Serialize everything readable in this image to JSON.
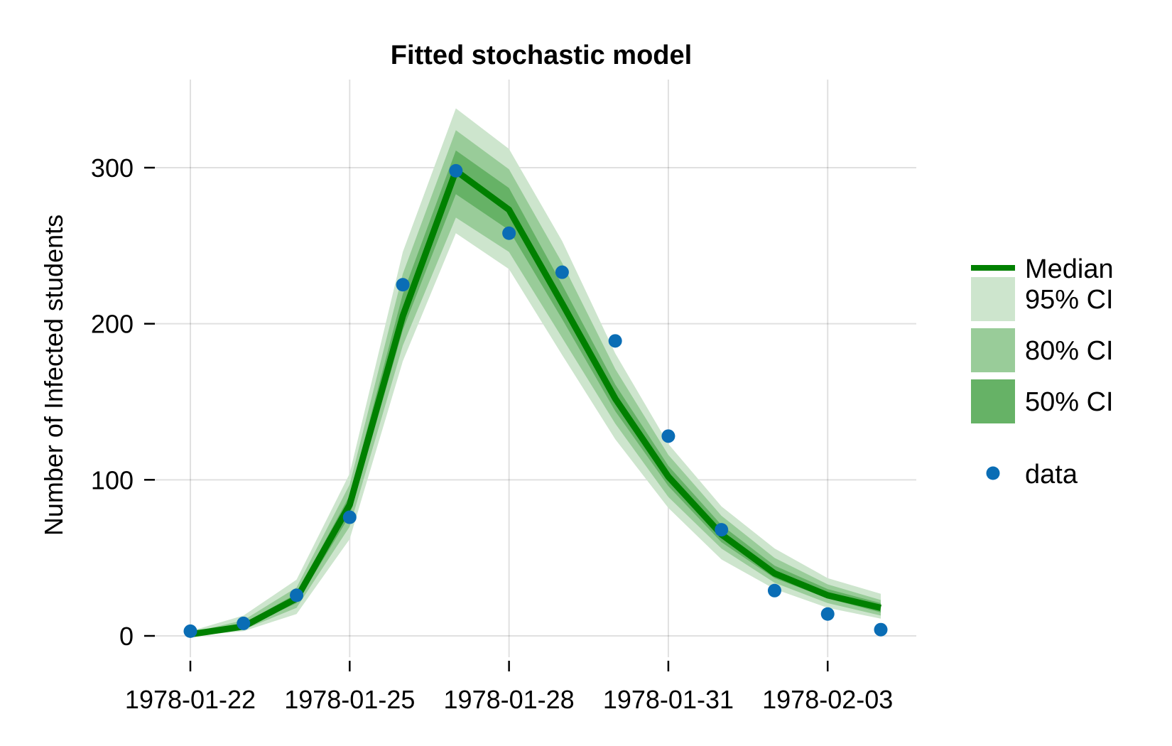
{
  "chart_data": {
    "type": "line",
    "title": "Fitted stochastic model",
    "xlabel": "",
    "ylabel": "Number of Infected students",
    "x": [
      "1978-01-22",
      "1978-01-23",
      "1978-01-24",
      "1978-01-25",
      "1978-01-26",
      "1978-01-27",
      "1978-01-28",
      "1978-01-29",
      "1978-01-30",
      "1978-01-31",
      "1978-02-01",
      "1978-02-02",
      "1978-02-03",
      "1978-02-04"
    ],
    "xticks": [
      "1978-01-22",
      "1978-01-25",
      "1978-01-28",
      "1978-01-31",
      "1978-02-03"
    ],
    "yticks": [
      0,
      100,
      200,
      300
    ],
    "xlim": [
      "1978-01-22",
      "1978-02-04"
    ],
    "ylim": [
      0,
      345
    ],
    "grid": true,
    "legend_position": "right",
    "colors": {
      "median": "#008000",
      "ci95": "#cde5cd",
      "ci80": "#99cc99",
      "ci50": "#66b266",
      "data": "#0a6db5"
    },
    "series": [
      {
        "name": "Median",
        "kind": "line",
        "values": [
          1,
          6,
          24,
          84,
          205,
          298,
          273,
          213,
          152,
          102,
          65,
          40,
          26,
          18
        ]
      },
      {
        "name": "95% CI",
        "kind": "band",
        "lower": [
          0,
          3,
          14,
          62,
          176,
          258,
          235,
          180,
          126,
          82,
          49,
          30,
          18,
          11
        ],
        "upper": [
          3,
          13,
          36,
          104,
          246,
          338,
          312,
          253,
          181,
          123,
          83,
          56,
          37,
          27
        ]
      },
      {
        "name": "80% CI",
        "kind": "band",
        "lower": [
          0,
          4,
          18,
          70,
          186,
          268,
          246,
          191,
          136,
          89,
          56,
          34,
          21,
          13
        ],
        "upper": [
          2,
          10,
          31,
          97,
          232,
          324,
          299,
          239,
          171,
          116,
          77,
          50,
          33,
          23
        ]
      },
      {
        "name": "50% CI",
        "kind": "band",
        "lower": [
          0,
          5,
          21,
          77,
          196,
          283,
          260,
          203,
          144,
          96,
          60,
          37,
          24,
          15
        ],
        "upper": [
          1,
          8,
          27,
          90,
          219,
          311,
          287,
          225,
          161,
          109,
          71,
          45,
          30,
          21
        ]
      },
      {
        "name": "data",
        "kind": "scatter",
        "values": [
          3,
          8,
          26,
          76,
          225,
          298,
          258,
          233,
          189,
          128,
          68,
          29,
          14,
          4
        ]
      }
    ]
  }
}
